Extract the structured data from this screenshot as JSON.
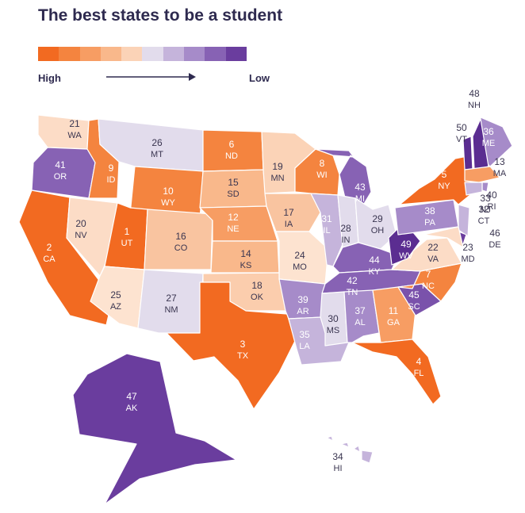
{
  "title": "The best states to be a student",
  "legend": {
    "high_label": "High",
    "low_label": "Low",
    "colors": [
      "#f26a21",
      "#f4843f",
      "#f79d63",
      "#f9b88b",
      "#fbd3b7",
      "#e2dcec",
      "#c5b4db",
      "#a68bc9",
      "#8762b4",
      "#6a3d9e"
    ]
  },
  "states": [
    {
      "id": "WA",
      "rank": "21",
      "abbr": "WA",
      "color": "#fcdcc6",
      "text": "dark"
    },
    {
      "id": "OR",
      "rank": "41",
      "abbr": "OR",
      "color": "#8762b4",
      "text": "light"
    },
    {
      "id": "CA",
      "rank": "2",
      "abbr": "CA",
      "color": "#f26a21",
      "text": "light"
    },
    {
      "id": "ID",
      "rank": "9",
      "abbr": "ID",
      "color": "#f4843f",
      "text": "light"
    },
    {
      "id": "NV",
      "rank": "20",
      "abbr": "NV",
      "color": "#fcdcc6",
      "text": "dark"
    },
    {
      "id": "MT",
      "rank": "26",
      "abbr": "MT",
      "color": "#e2dcec",
      "text": "dark"
    },
    {
      "id": "WY",
      "rank": "10",
      "abbr": "WY",
      "color": "#f4843f",
      "text": "light"
    },
    {
      "id": "UT",
      "rank": "1",
      "abbr": "UT",
      "color": "#f26a21",
      "text": "light"
    },
    {
      "id": "AZ",
      "rank": "25",
      "abbr": "AZ",
      "color": "#fde3d0",
      "text": "dark"
    },
    {
      "id": "CO",
      "rank": "16",
      "abbr": "CO",
      "color": "#f9c4a0",
      "text": "dark"
    },
    {
      "id": "NM",
      "rank": "27",
      "abbr": "NM",
      "color": "#e2dcec",
      "text": "dark"
    },
    {
      "id": "ND",
      "rank": "6",
      "abbr": "ND",
      "color": "#f4843f",
      "text": "light"
    },
    {
      "id": "SD",
      "rank": "15",
      "abbr": "SD",
      "color": "#f9b88b",
      "text": "dark"
    },
    {
      "id": "NE",
      "rank": "12",
      "abbr": "NE",
      "color": "#f79d63",
      "text": "light"
    },
    {
      "id": "KS",
      "rank": "14",
      "abbr": "KS",
      "color": "#f9b88b",
      "text": "dark"
    },
    {
      "id": "OK",
      "rank": "18",
      "abbr": "OK",
      "color": "#fbcdad",
      "text": "dark"
    },
    {
      "id": "TX",
      "rank": "3",
      "abbr": "TX",
      "color": "#f26a21",
      "text": "light"
    },
    {
      "id": "MN",
      "rank": "19",
      "abbr": "MN",
      "color": "#fbd3b7",
      "text": "dark"
    },
    {
      "id": "IA",
      "rank": "17",
      "abbr": "IA",
      "color": "#f9c4a0",
      "text": "dark"
    },
    {
      "id": "MO",
      "rank": "24",
      "abbr": "MO",
      "color": "#fde3d0",
      "text": "dark"
    },
    {
      "id": "AR",
      "rank": "39",
      "abbr": "AR",
      "color": "#a68bc9",
      "text": "light"
    },
    {
      "id": "LA",
      "rank": "35",
      "abbr": "LA",
      "color": "#c5b4db",
      "text": "light"
    },
    {
      "id": "WI",
      "rank": "8",
      "abbr": "WI",
      "color": "#f4843f",
      "text": "light"
    },
    {
      "id": "MI",
      "rank": "43",
      "abbr": "MI",
      "color": "#8762b4",
      "text": "light"
    },
    {
      "id": "IL",
      "rank": "31",
      "abbr": "IL",
      "color": "#c5b4db",
      "text": "light"
    },
    {
      "id": "IN",
      "rank": "28",
      "abbr": "IN",
      "color": "#e2dcec",
      "text": "dark"
    },
    {
      "id": "OH",
      "rank": "29",
      "abbr": "OH",
      "color": "#e2dcec",
      "text": "dark"
    },
    {
      "id": "KY",
      "rank": "44",
      "abbr": "KY",
      "color": "#8762b4",
      "text": "light"
    },
    {
      "id": "TN",
      "rank": "42",
      "abbr": "TN",
      "color": "#8762b4",
      "text": "light"
    },
    {
      "id": "MS",
      "rank": "30",
      "abbr": "MS",
      "color": "#e2dcec",
      "text": "dark"
    },
    {
      "id": "AL",
      "rank": "37",
      "abbr": "AL",
      "color": "#a68bc9",
      "text": "light"
    },
    {
      "id": "GA",
      "rank": "11",
      "abbr": "GA",
      "color": "#f79d63",
      "text": "light"
    },
    {
      "id": "FL",
      "rank": "4",
      "abbr": "FL",
      "color": "#f26a21",
      "text": "light"
    },
    {
      "id": "SC",
      "rank": "45",
      "abbr": "SC",
      "color": "#7a52ab",
      "text": "light"
    },
    {
      "id": "NC",
      "rank": "7",
      "abbr": "NC",
      "color": "#f4843f",
      "text": "light"
    },
    {
      "id": "VA",
      "rank": "22",
      "abbr": "VA",
      "color": "#fcdcc6",
      "text": "dark"
    },
    {
      "id": "WV",
      "rank": "49",
      "abbr": "WV",
      "color": "#5b2d91",
      "text": "light"
    },
    {
      "id": "PA",
      "rank": "38",
      "abbr": "PA",
      "color": "#a68bc9",
      "text": "light"
    },
    {
      "id": "NY",
      "rank": "5",
      "abbr": "NY",
      "color": "#f26a21",
      "text": "light"
    },
    {
      "id": "ME",
      "rank": "36",
      "abbr": "ME",
      "color": "#a68bc9",
      "text": "light"
    },
    {
      "id": "VT",
      "rank": "50",
      "abbr": "VT",
      "color": "#5b2d91",
      "text": "dark"
    },
    {
      "id": "NH",
      "rank": "48",
      "abbr": "NH",
      "color": "#5b2d91",
      "text": "dark"
    },
    {
      "id": "MA",
      "rank": "13",
      "abbr": "MA",
      "color": "#f79d63",
      "text": "dark"
    },
    {
      "id": "RI",
      "rank": "40",
      "abbr": "RI",
      "color": "#a68bc9",
      "text": "dark"
    },
    {
      "id": "CT",
      "rank": "32",
      "abbr": "CT",
      "color": "#c5b4db",
      "text": "dark"
    },
    {
      "id": "NJ",
      "rank": "33",
      "abbr": "NJ",
      "color": "#c5b4db",
      "text": "dark"
    },
    {
      "id": "DE",
      "rank": "46",
      "abbr": "DE",
      "color": "#6a3d9e",
      "text": "dark"
    },
    {
      "id": "MD",
      "rank": "23",
      "abbr": "MD",
      "color": "#fcdcc6",
      "text": "dark"
    },
    {
      "id": "AK",
      "rank": "47",
      "abbr": "AK",
      "color": "#6a3d9e",
      "text": "light"
    },
    {
      "id": "HI",
      "rank": "34",
      "abbr": "HI",
      "color": "#c5b4db",
      "text": "dark"
    }
  ]
}
